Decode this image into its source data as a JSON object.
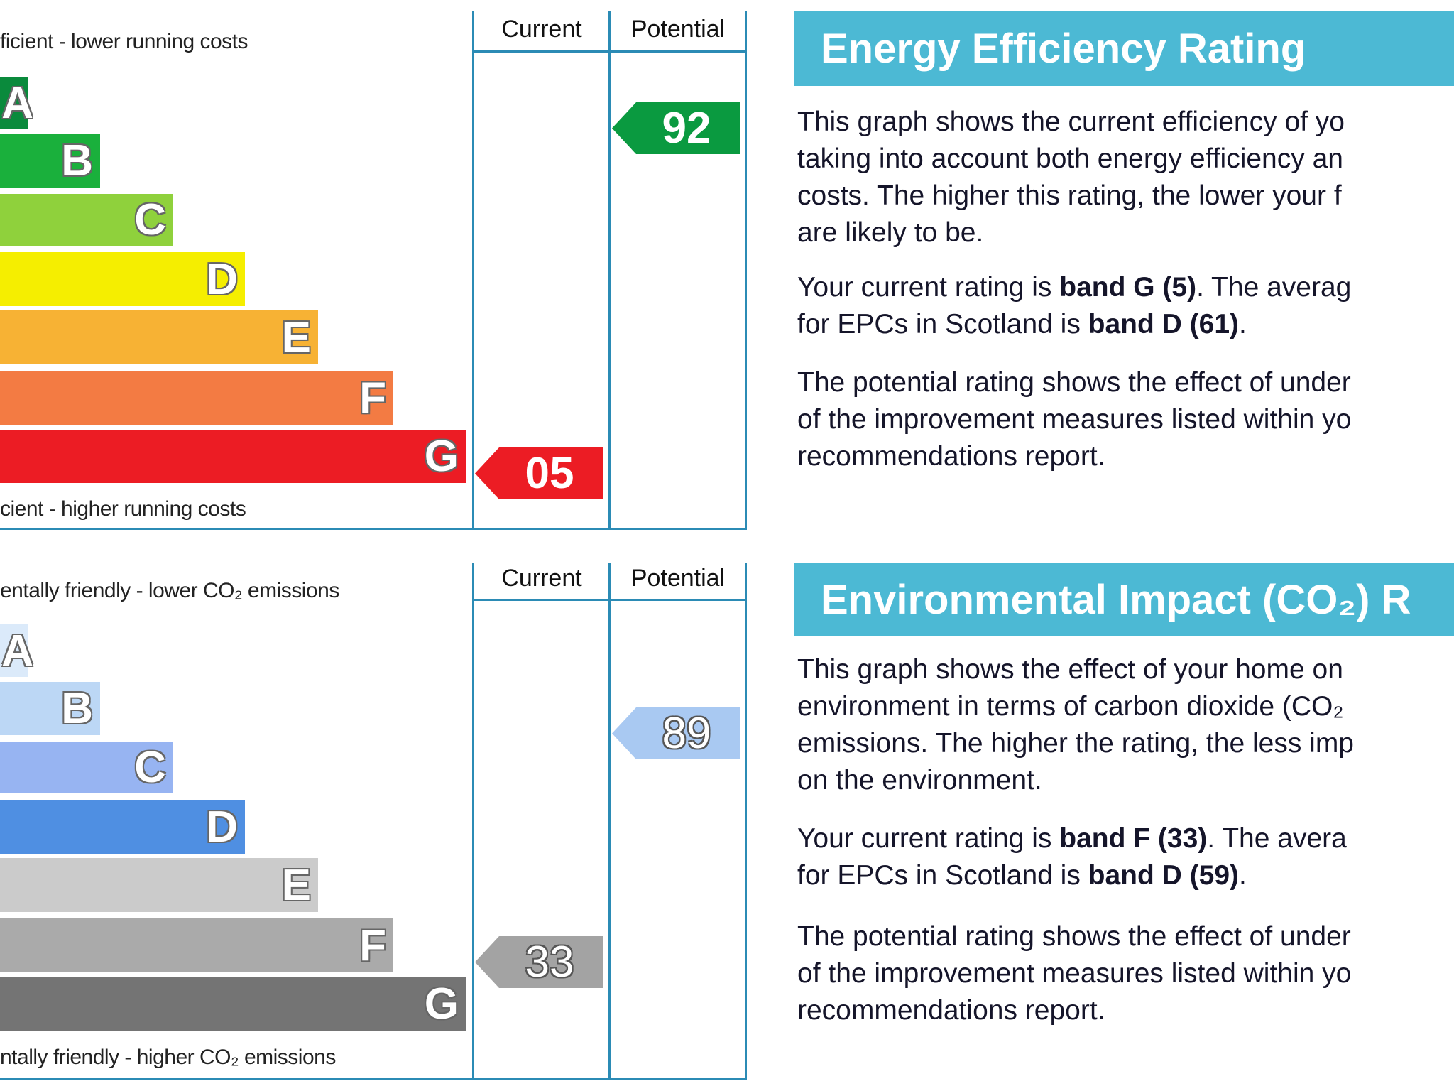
{
  "chart_data": [
    {
      "type": "bar",
      "categories": [
        "A",
        "B",
        "C",
        "D",
        "E",
        "F",
        "G"
      ],
      "band_colors": [
        "#0a8a3c",
        "#1ab03c",
        "#8fd13c",
        "#f5ee00",
        "#f7b234",
        "#f37b43",
        "#ec1c24"
      ],
      "top_label": "ficient - lower running costs",
      "bottom_label": "cient - higher running costs",
      "columns": [
        "Current",
        "Potential"
      ],
      "current": {
        "value": "05",
        "band": "G",
        "color": "#ec1c24"
      },
      "potential": {
        "value": "92",
        "band": "A",
        "color": "#0a9a40"
      }
    },
    {
      "type": "bar",
      "categories": [
        "A",
        "B",
        "C",
        "D",
        "E",
        "F",
        "G"
      ],
      "band_colors": [
        "#dbeafa",
        "#bcd7f5",
        "#97b4f2",
        "#4f8fe2",
        "#cbcbcb",
        "#aaaaaa",
        "#747474"
      ],
      "top_label": "entally friendly - lower CO₂ emissions",
      "bottom_label": "ntally friendly - higher CO₂ emissions",
      "columns": [
        "Current",
        "Potential"
      ],
      "current": {
        "value": "33",
        "band": "F",
        "color": "#a3a3a3"
      },
      "potential": {
        "value": "89",
        "band": "B",
        "color": "#a9c9f2"
      }
    }
  ],
  "panels": [
    {
      "title": "Energy Efficiency Rating",
      "para1": [
        "This graph shows the current efficiency of yo",
        "taking into account both energy efficiency an",
        "costs. The higher this rating, the lower your f",
        "are likely to be."
      ],
      "para2": {
        "l1a": "Your current rating is ",
        "l1b": "band G (5)",
        "l1c": ". The averag",
        "l2a": "for EPCs in Scotland is ",
        "l2b": "band D (61)",
        "l2c": "."
      },
      "para3": [
        "The potential rating shows the effect of under",
        "of the improvement measures listed within yo",
        "recommendations report."
      ]
    },
    {
      "title": "Environmental Impact (CO₂) R",
      "para1": [
        "This graph shows the effect of your home on",
        "environment in terms of carbon dioxide (CO₂",
        "emissions. The higher the rating, the less imp",
        "on the environment."
      ],
      "para2": {
        "l1a": "Your current rating is ",
        "l1b": "band F (33)",
        "l1c": ". The avera",
        "l2a": "for EPCs in Scotland is ",
        "l2b": "band D (59)",
        "l2c": "."
      },
      "para3": [
        "The potential rating shows the effect of under",
        "of the improvement measures listed within yo",
        "recommendations report."
      ]
    }
  ]
}
